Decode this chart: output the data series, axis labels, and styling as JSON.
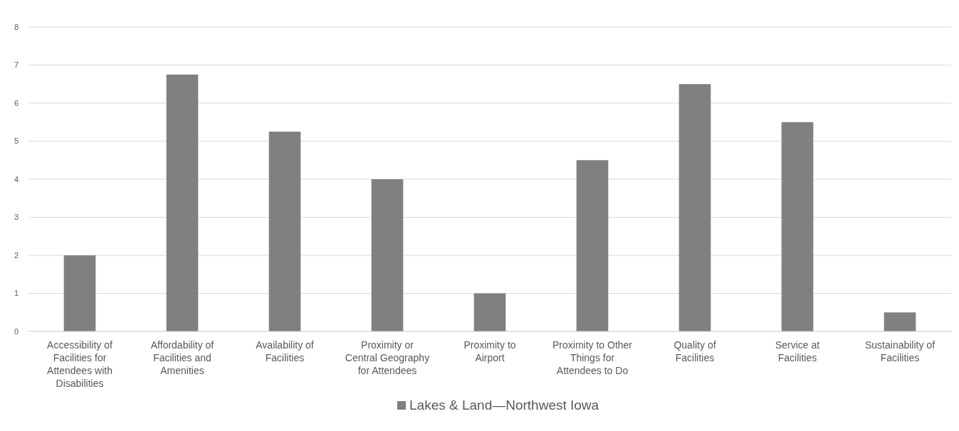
{
  "chart_data": {
    "type": "bar",
    "categories": [
      "Accessibility of Facilities for Attendees with Disabilities",
      "Affordability of Facilities and Amenities",
      "Availability of Facilities",
      "Proximity or Central Geography for Attendees",
      "Proximity to Airport",
      "Proximity to Other Things for Attendees to Do",
      "Quality of Facilities",
      "Service at Facilities",
      "Sustainability of Facilities"
    ],
    "series": [
      {
        "name": "Lakes & Land—Northwest Iowa",
        "color": "#808080",
        "values": [
          2,
          6.75,
          5.25,
          4,
          1,
          4.5,
          6.5,
          5.5,
          0.5
        ]
      }
    ],
    "ylim": [
      0,
      8
    ],
    "yticks": [
      0,
      1,
      2,
      3,
      4,
      5,
      6,
      7,
      8
    ],
    "grid": "y",
    "legend": "bottom"
  }
}
